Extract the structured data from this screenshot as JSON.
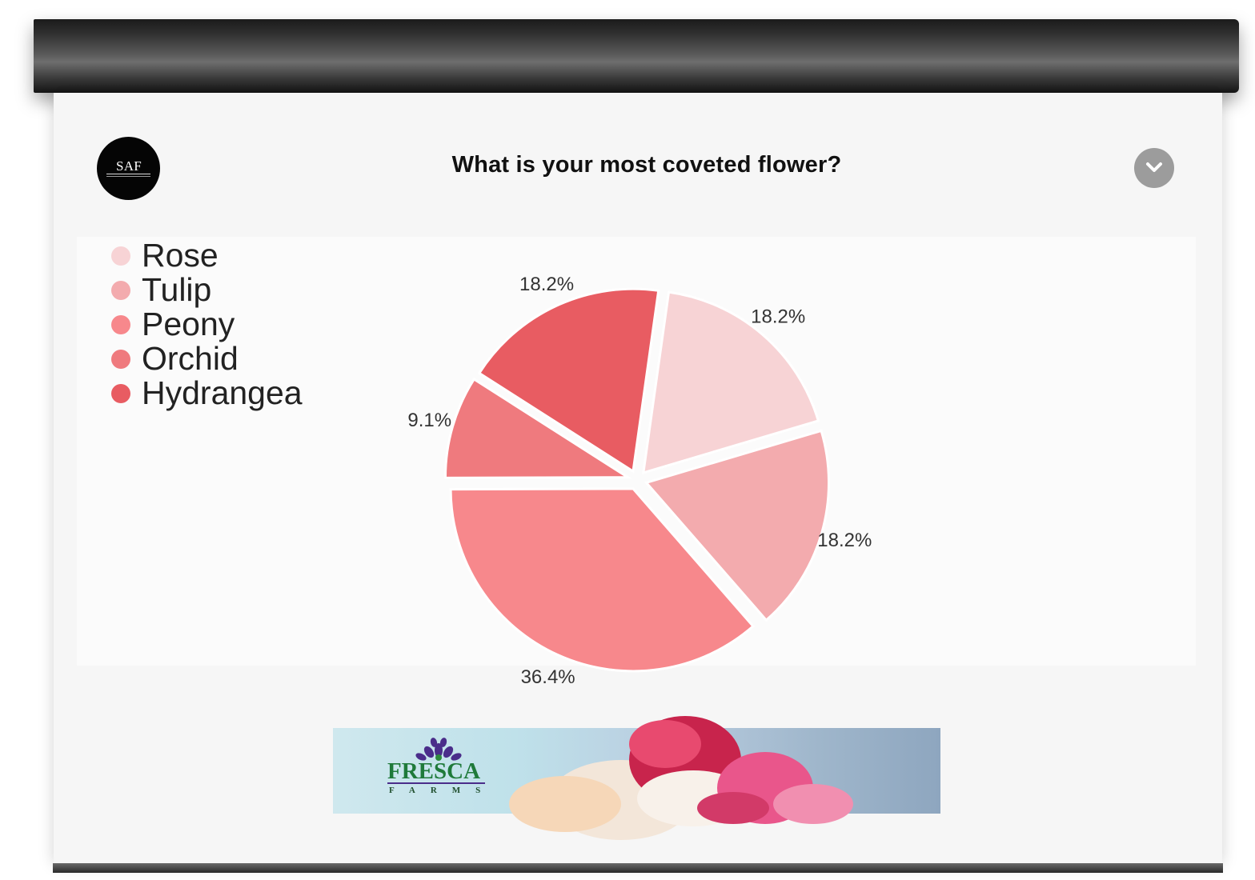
{
  "logo": {
    "text": "SAF"
  },
  "poll": {
    "question": "What is your most coveted flower?"
  },
  "banner": {
    "brand": "FRESCA",
    "sub": "FARMS"
  },
  "icons": {
    "dropdown": "chevron-down-icon"
  },
  "colors": {
    "rose": "#f7d3d5",
    "tulip": "#f3abae",
    "peony": "#f7888c",
    "orchid": "#ef7a7e",
    "hydrangea": "#e85c62"
  },
  "chart_data": {
    "type": "pie",
    "title": "What is your most coveted flower?",
    "legend_position": "top-left",
    "slices": [
      {
        "name": "Rose",
        "value": 18.2,
        "label": "18.2%",
        "color": "#f7d3d5"
      },
      {
        "name": "Tulip",
        "value": 18.2,
        "label": "18.2%",
        "color": "#f3abae"
      },
      {
        "name": "Peony",
        "value": 36.4,
        "label": "36.4%",
        "color": "#f7888c"
      },
      {
        "name": "Orchid",
        "value": 9.1,
        "label": "9.1%",
        "color": "#ef7a7e"
      },
      {
        "name": "Hydrangea",
        "value": 18.2,
        "label": "18.2%",
        "color": "#e85c62"
      }
    ]
  }
}
